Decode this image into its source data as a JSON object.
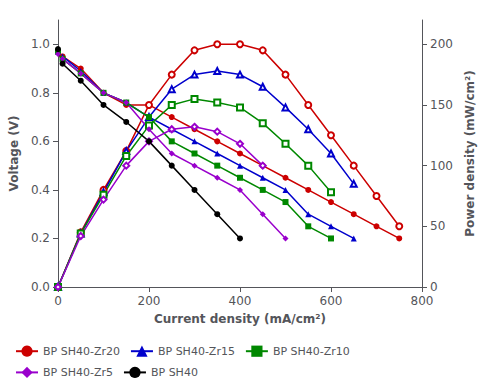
{
  "chart_data": {
    "type": "line",
    "xlabel": "Current density (mA/cm²)",
    "ylabel": "Voltage (V)",
    "y2label": "Power density (mW/cm²)",
    "xlim": [
      0,
      800
    ],
    "xticks": [
      0,
      200,
      400,
      600,
      800
    ],
    "ylim": [
      0.0,
      1.1
    ],
    "yticks": [
      {
        "value": 0.0,
        "label": "0.0"
      },
      0.2,
      0.4,
      0.6,
      0.8,
      {
        "value": 1.0,
        "label": "1.0"
      }
    ],
    "y2lim": [
      0,
      220
    ],
    "y2ticks": [
      0,
      50,
      100,
      150,
      200
    ],
    "grid": false,
    "legend": "lower left",
    "series": [
      {
        "name": "BP SH40-Zr20",
        "color": "#cc0000",
        "marker": "circle",
        "x": [
          0,
          10,
          50,
          100,
          150,
          200,
          250,
          300,
          350,
          400,
          450,
          500,
          550,
          600,
          650,
          700,
          750
        ],
        "values": [
          0.97,
          0.95,
          0.9,
          0.8,
          0.75,
          0.75,
          0.7,
          0.65,
          0.6,
          0.55,
          0.5,
          0.45,
          0.4,
          0.35,
          0.3,
          0.25,
          0.2
        ]
      },
      {
        "color": "#cc0000",
        "marker": "open circle",
        "axis": "y2",
        "x": [
          0,
          50,
          100,
          150,
          200,
          250,
          300,
          350,
          400,
          450,
          500,
          550,
          600,
          650,
          700,
          750
        ],
        "values": [
          0,
          45,
          80,
          112,
          150,
          175,
          195,
          200,
          200,
          195,
          175,
          150,
          125,
          100,
          75,
          50
        ]
      },
      {
        "name": "BP SH40-Zr15",
        "color": "#0000cc",
        "marker": "triangle",
        "x": [
          0,
          10,
          50,
          100,
          150,
          200,
          250,
          300,
          350,
          400,
          450,
          500,
          550,
          600,
          650
        ],
        "values": [
          0.97,
          0.95,
          0.89,
          0.8,
          0.76,
          0.7,
          0.65,
          0.6,
          0.55,
          0.5,
          0.45,
          0.4,
          0.3,
          0.25,
          0.2
        ]
      },
      {
        "color": "#0000cc",
        "marker": "open triangle",
        "axis": "y2",
        "x": [
          0,
          50,
          100,
          150,
          200,
          250,
          300,
          350,
          400,
          450,
          500,
          550,
          600,
          650
        ],
        "values": [
          0,
          44,
          78,
          112,
          140,
          163,
          175,
          178,
          175,
          165,
          148,
          130,
          110,
          85
        ]
      },
      {
        "name": "BP SH40-Zr10",
        "color": "#008800",
        "marker": "square",
        "x": [
          0,
          10,
          50,
          100,
          150,
          200,
          250,
          300,
          350,
          400,
          450,
          500,
          550,
          600
        ],
        "values": [
          0.97,
          0.94,
          0.88,
          0.8,
          0.76,
          0.7,
          0.6,
          0.55,
          0.5,
          0.45,
          0.4,
          0.35,
          0.25,
          0.2
        ]
      },
      {
        "color": "#008800",
        "marker": "open square",
        "axis": "y2",
        "x": [
          0,
          50,
          100,
          150,
          200,
          250,
          300,
          350,
          400,
          450,
          500,
          550,
          600
        ],
        "values": [
          0,
          44,
          76,
          108,
          133,
          150,
          155,
          152,
          148,
          135,
          118,
          100,
          78
        ]
      },
      {
        "name": "BP SH40-Zr5",
        "color": "#9900cc",
        "marker": "diamond",
        "x": [
          0,
          10,
          50,
          100,
          150,
          200,
          250,
          300,
          350,
          400,
          450,
          500
        ],
        "values": [
          0.96,
          0.94,
          0.88,
          0.8,
          0.76,
          0.65,
          0.55,
          0.5,
          0.45,
          0.4,
          0.3,
          0.2
        ]
      },
      {
        "color": "#9900cc",
        "marker": "open diamond",
        "axis": "y2",
        "x": [
          0,
          50,
          100,
          150,
          200,
          250,
          300,
          350,
          400,
          450
        ],
        "values": [
          0,
          42,
          72,
          100,
          120,
          130,
          132,
          128,
          118,
          100
        ]
      },
      {
        "name": "BP SH40",
        "color": "#000000",
        "marker": "circle",
        "x": [
          0,
          10,
          50,
          100,
          150,
          200,
          250,
          300,
          350,
          400
        ],
        "values": [
          0.98,
          0.92,
          0.85,
          0.75,
          0.68,
          0.6,
          0.5,
          0.4,
          0.3,
          0.2
        ]
      }
    ]
  }
}
